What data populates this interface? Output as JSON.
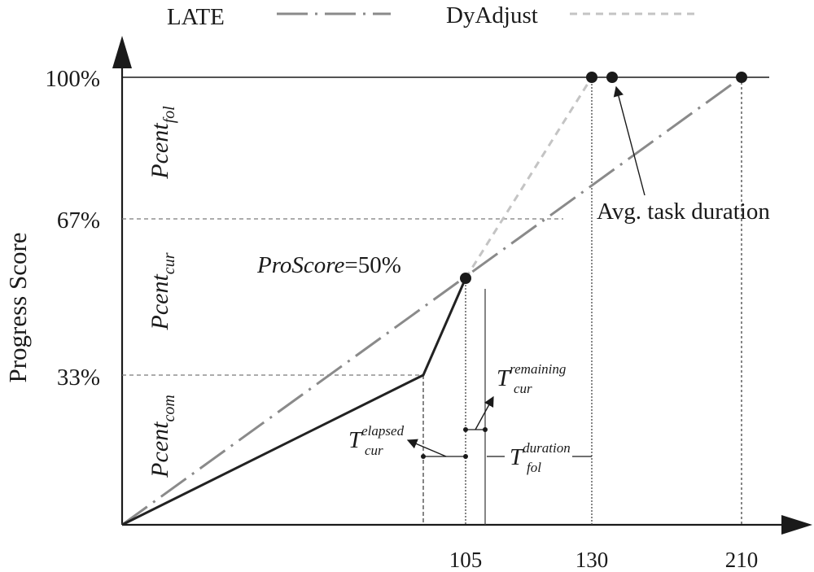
{
  "legend": {
    "late": "LATE",
    "dyadjust": "DyAdjust"
  },
  "yaxis": {
    "label": "Progress Score",
    "ticks": [
      "100%",
      "67%",
      "33%"
    ]
  },
  "xaxis": {
    "ticks": [
      "105",
      "130",
      "210"
    ]
  },
  "regions": {
    "fol": {
      "base": "Pcent",
      "sub": "fol"
    },
    "cur": {
      "base": "Pcent",
      "sub": "cur"
    },
    "com": {
      "base": "Pcent",
      "sub": "com"
    }
  },
  "annotations": {
    "proscore": {
      "label": "ProScore",
      "value": "=50%"
    },
    "avg_task_duration": "Avg. task duration",
    "t_remaining": {
      "base": "T",
      "sub": "cur",
      "sup": "remaining"
    },
    "t_elapsed": {
      "base": "T",
      "sub": "cur",
      "sup": "elapsed"
    },
    "t_duration": {
      "base": "T",
      "sub": "fol",
      "sup": "duration"
    }
  },
  "colors": {
    "axis": "#1a1a1a",
    "actual": "#222222",
    "late": "#8a8a8a",
    "dyadjust": "#c4c4c4",
    "guide": "#7a7a7a"
  }
}
